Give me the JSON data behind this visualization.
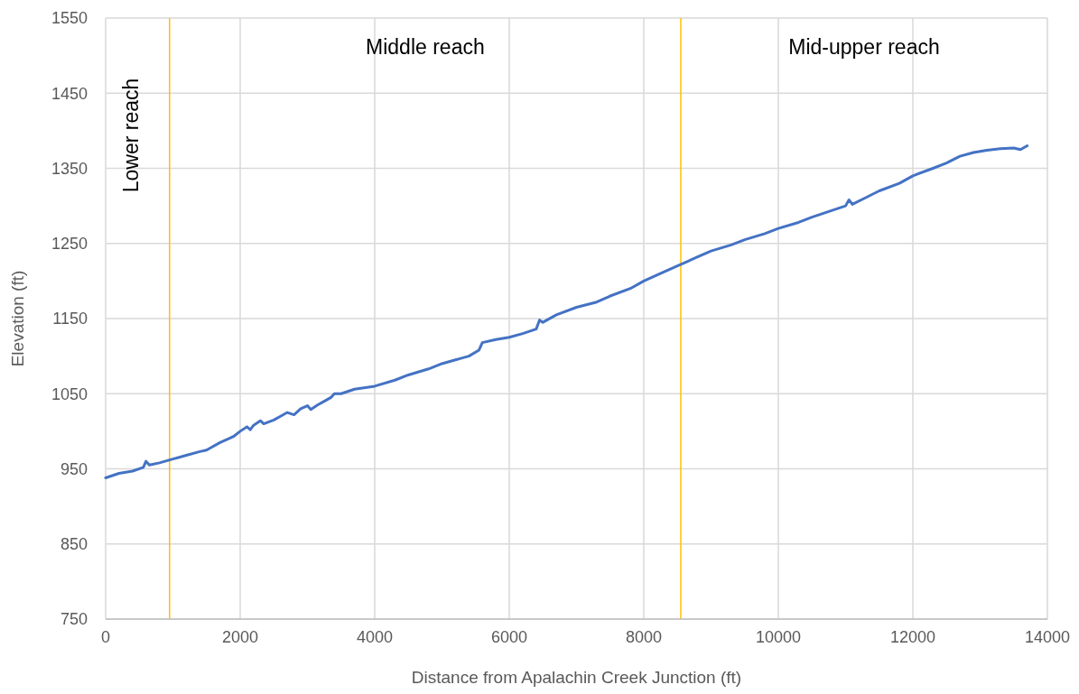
{
  "chart_data": {
    "type": "line",
    "xlabel": "Distance from Apalachin Creek Junction (ft)",
    "ylabel": "Elevation (ft)",
    "xlim": [
      0,
      14000
    ],
    "xticks": [
      0,
      2000,
      4000,
      6000,
      8000,
      10000,
      12000,
      14000
    ],
    "ylim": [
      750,
      1550
    ],
    "yticks": [
      750,
      850,
      950,
      1050,
      1150,
      1250,
      1350,
      1450,
      1550
    ],
    "grid": true,
    "series": [
      {
        "color": "#4472c4",
        "x": [
          0,
          100,
          200,
          400,
          560,
          600,
          650,
          800,
          1000,
          1200,
          1400,
          1500,
          1700,
          1900,
          2000,
          2100,
          2150,
          2200,
          2300,
          2350,
          2500,
          2600,
          2700,
          2800,
          2900,
          3000,
          3050,
          3150,
          3250,
          3350,
          3400,
          3500,
          3700,
          4000,
          4300,
          4500,
          4800,
          5000,
          5200,
          5400,
          5550,
          5600,
          5800,
          6000,
          6200,
          6400,
          6450,
          6500,
          6700,
          7000,
          7300,
          7500,
          7800,
          8000,
          8200,
          8500,
          8800,
          9000,
          9300,
          9500,
          9800,
          10000,
          10300,
          10500,
          10800,
          11000,
          11050,
          11100,
          11300,
          11500,
          11800,
          12000,
          12300,
          12500,
          12700,
          12900,
          13100,
          13300,
          13500,
          13600,
          13700
        ],
        "values": [
          938,
          941,
          944,
          947,
          952,
          960,
          955,
          958,
          963,
          968,
          973,
          975,
          985,
          993,
          1000,
          1006,
          1002,
          1008,
          1014,
          1010,
          1015,
          1020,
          1025,
          1022,
          1030,
          1034,
          1029,
          1035,
          1040,
          1045,
          1050,
          1050,
          1056,
          1060,
          1068,
          1075,
          1083,
          1090,
          1095,
          1100,
          1108,
          1118,
          1122,
          1125,
          1130,
          1136,
          1148,
          1145,
          1155,
          1165,
          1172,
          1180,
          1190,
          1200,
          1208,
          1220,
          1232,
          1240,
          1248,
          1255,
          1263,
          1270,
          1278,
          1285,
          1294,
          1300,
          1308,
          1302,
          1311,
          1320,
          1330,
          1340,
          1350,
          1357,
          1366,
          1371,
          1374,
          1376,
          1377,
          1375,
          1380
        ]
      }
    ],
    "ref_lines": [
      {
        "axis": "x",
        "value": 950,
        "color": "#ffc000"
      },
      {
        "axis": "x",
        "value": 8550,
        "color": "#ffc000"
      }
    ],
    "annotations": [
      "Lower reach",
      "Middle reach",
      "Mid-upper reach"
    ]
  }
}
